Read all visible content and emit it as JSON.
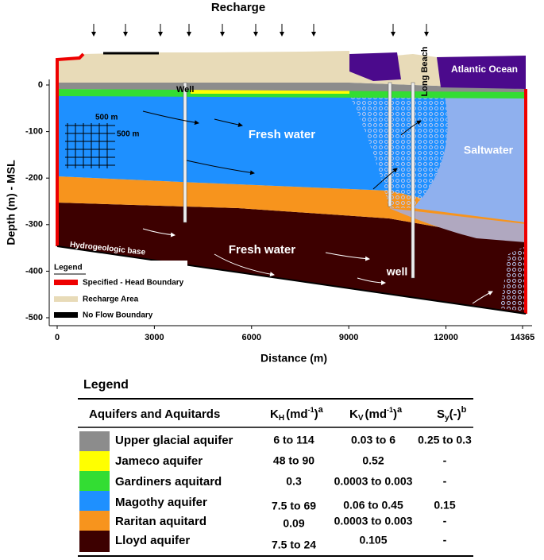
{
  "section": {
    "title": "Recharge",
    "x_axis": {
      "label": "Distance (m)",
      "ticks": [
        0,
        3000,
        6000,
        9000,
        12000,
        14365
      ]
    },
    "y_axis": {
      "label": "Depth (m) - MSL",
      "ticks": [
        0,
        -100,
        -200,
        -300,
        -400,
        -500
      ]
    },
    "labels": {
      "well_left": "Well",
      "grid_w": "500 m",
      "grid_h": "500 m",
      "fresh_upper": "Fresh water",
      "saltwater": "Saltwater",
      "fresh_lower": "Fresh water",
      "well_right": "well",
      "base": "Hydrogeologic base",
      "long_beach": "Long Beach",
      "ocean": "Atlantic Ocean"
    },
    "legend": {
      "title": "Legend",
      "items": [
        "Specified - Head Boundary",
        "Recharge Area",
        "No Flow Boundary"
      ]
    }
  },
  "table": {
    "title": "Legend",
    "header": {
      "name": "Aquifers and Aquitards",
      "kh": {
        "symbol": "K",
        "sub": "H",
        "unit": "(md",
        "exp": "-1",
        "close": ")",
        "note": "a"
      },
      "kv": {
        "symbol": "K",
        "sub": "V",
        "unit": "(md",
        "exp": "-1",
        "close": ")",
        "note": "a"
      },
      "sy": {
        "symbol": "S",
        "sub": "y",
        "unit": "(-)",
        "note": "b"
      }
    },
    "rows": [
      [
        "Upper glacial aquifer",
        "6 to 114",
        "0.03 to 6",
        "0.25 to 0.3"
      ],
      [
        "Jameco aquifer",
        "48 to 90",
        "0.52",
        "-"
      ],
      [
        "Gardiners aquitard",
        "0.3",
        "0.0003 to 0.003",
        "-"
      ],
      [
        "Magothy aquifer",
        "7.5 to 69",
        "0.06 to 0.45",
        "0.15"
      ],
      [
        "Raritan aquitard",
        "0.09",
        "0.0003 to 0.003",
        "-"
      ],
      [
        "Lloyd aquifer",
        "7.5 to 24",
        "0.105",
        "-"
      ]
    ]
  }
}
